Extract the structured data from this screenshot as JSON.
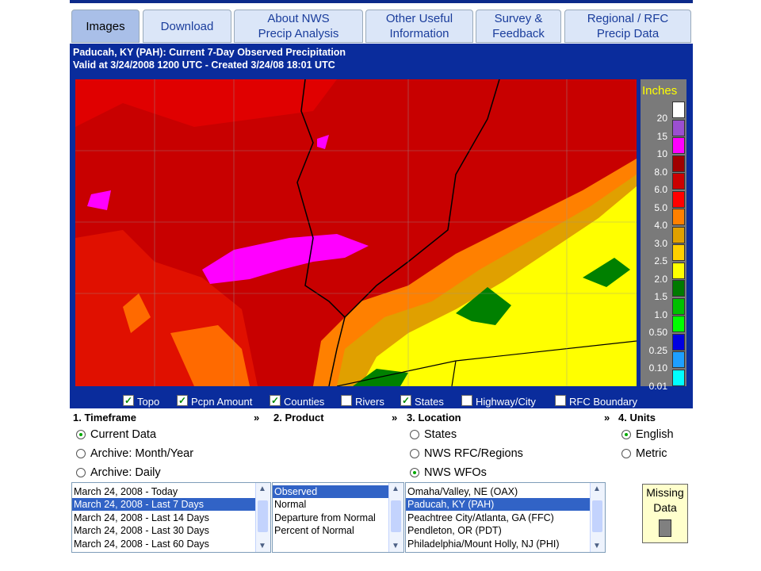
{
  "tabs": [
    [
      "Images"
    ],
    [
      "Download"
    ],
    [
      "About NWS",
      "Precip Analysis"
    ],
    [
      "Other Useful",
      "Information"
    ],
    [
      "Survey &",
      "Feedback"
    ],
    [
      "Regional / RFC",
      "Precip Data"
    ]
  ],
  "selected_tab": 0,
  "header": {
    "lines": [
      "Paducah, KY (PAH): Current 7-Day Observed Precipitation",
      "Valid at 3/24/2008 1200 UTC - Created 3/24/08 18:01 UTC"
    ]
  },
  "legend": {
    "title": "Inches",
    "items": [
      {
        "label": "20",
        "color": "#ffffff"
      },
      {
        "label": "15",
        "color": "#9b4fd0"
      },
      {
        "label": "10",
        "color": "#ff00ff"
      },
      {
        "label": "8.0",
        "color": "#a00000"
      },
      {
        "label": "6.0",
        "color": "#cc0000"
      },
      {
        "label": "5.0",
        "color": "#ff0000"
      },
      {
        "label": "4.0",
        "color": "#ff8000"
      },
      {
        "label": "3.0",
        "color": "#e0a000"
      },
      {
        "label": "2.5",
        "color": "#ffd000"
      },
      {
        "label": "2.0",
        "color": "#ffff00"
      },
      {
        "label": "1.5",
        "color": "#007a00"
      },
      {
        "label": "1.0",
        "color": "#00c000"
      },
      {
        "label": "0.50",
        "color": "#00ff00"
      },
      {
        "label": "0.25",
        "color": "#0000e0"
      },
      {
        "label": "0.10",
        "color": "#1e9fff"
      },
      {
        "label": "0.01",
        "color": "#00ffff"
      }
    ]
  },
  "checkboxes": [
    {
      "label": "Topo",
      "checked": true
    },
    {
      "label": "Pcpn Amount",
      "checked": true
    },
    {
      "label": "Counties",
      "checked": true
    },
    {
      "label": "Rivers",
      "checked": false
    },
    {
      "label": "States",
      "checked": true
    },
    {
      "label": "Highway/City",
      "checked": false
    },
    {
      "label": "RFC Boundary",
      "checked": false
    }
  ],
  "sections": [
    {
      "title": "1. Timeframe",
      "arrow": "»",
      "radios": [
        "Current Data",
        "Archive: Month/Year",
        "Archive: Daily"
      ],
      "selected_radio": 0,
      "list": [
        "March 24, 2008 - Today",
        "March 24, 2008 - Last 7 Days",
        "March 24, 2008 - Last 14 Days",
        "March 24, 2008 - Last 30 Days",
        "March 24, 2008 - Last 60 Days"
      ],
      "selected_item": 1
    },
    {
      "title": "2. Product",
      "arrow": "»",
      "radios": [],
      "selected_radio": null,
      "list": [
        "Observed",
        "Normal",
        "Departure from Normal",
        "Percent of Normal"
      ],
      "selected_item": 0
    },
    {
      "title": "3. Location",
      "arrow": "»",
      "radios": [
        "States",
        "NWS RFC/Regions",
        "NWS WFOs"
      ],
      "selected_radio": 2,
      "list": [
        "Omaha/Valley, NE (OAX)",
        "Paducah, KY (PAH)",
        "Peachtree City/Atlanta, GA (FFC)",
        "Pendleton, OR (PDT)",
        "Philadelphia/Mount Holly, NJ (PHI)"
      ],
      "selected_item": 1
    },
    {
      "title": "4. Units",
      "arrow": null,
      "radios": [
        "English",
        "Metric"
      ],
      "selected_radio": 0,
      "list": null,
      "selected_item": null
    }
  ],
  "missing_data": [
    "Missing",
    "Data"
  ]
}
